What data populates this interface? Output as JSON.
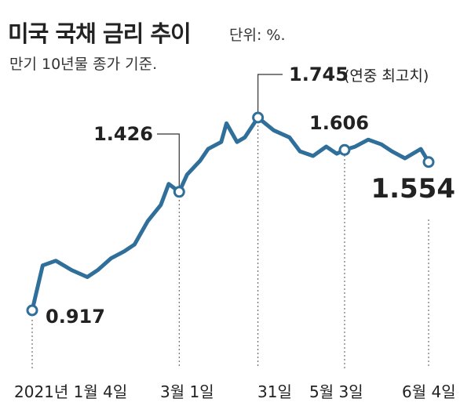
{
  "title": "미국 국채 금리 추이",
  "unit_note": "단위: %.",
  "subtitle": "만기 10년물 종가 기준.",
  "colors": {
    "line": "#2f6f9a",
    "text": "#222222",
    "guide": "#555555"
  },
  "chart_data": {
    "type": "line",
    "title": "미국 국채 금리 추이",
    "subtitle": "만기 10년물 종가 기준.",
    "unit": "%",
    "x": [
      "2021-01-04",
      "2021-01-08",
      "2021-01-13",
      "2021-01-19",
      "2021-01-25",
      "2021-01-29",
      "2021-02-03",
      "2021-02-08",
      "2021-02-12",
      "2021-02-17",
      "2021-02-22",
      "2021-02-25",
      "2021-03-01",
      "2021-03-04",
      "2021-03-09",
      "2021-03-12",
      "2021-03-17",
      "2021-03-19",
      "2021-03-23",
      "2021-03-26",
      "2021-03-31",
      "2021-04-06",
      "2021-04-12",
      "2021-04-16",
      "2021-04-21",
      "2021-04-26",
      "2021-04-30",
      "2021-05-03",
      "2021-05-07",
      "2021-05-12",
      "2021-05-17",
      "2021-05-21",
      "2021-05-26",
      "2021-06-01",
      "2021-06-04"
    ],
    "values": [
      0.917,
      1.11,
      1.13,
      1.09,
      1.06,
      1.09,
      1.14,
      1.17,
      1.2,
      1.3,
      1.37,
      1.46,
      1.426,
      1.5,
      1.56,
      1.61,
      1.64,
      1.72,
      1.64,
      1.66,
      1.745,
      1.69,
      1.66,
      1.6,
      1.58,
      1.62,
      1.59,
      1.606,
      1.62,
      1.65,
      1.63,
      1.6,
      1.57,
      1.61,
      1.554
    ],
    "highlights": [
      {
        "index": 0,
        "label": "0.917",
        "axis_label": "2021년 1월 4일"
      },
      {
        "index": 12,
        "label": "1.426",
        "axis_label": "3월 1일"
      },
      {
        "index": 20,
        "label": "1.745",
        "note": "(연중 최고치)",
        "axis_label": "31일"
      },
      {
        "index": 27,
        "label": "1.606",
        "axis_label": "5월 3일"
      },
      {
        "index": 34,
        "label": "1.554",
        "axis_label": "6월 4일"
      }
    ]
  }
}
